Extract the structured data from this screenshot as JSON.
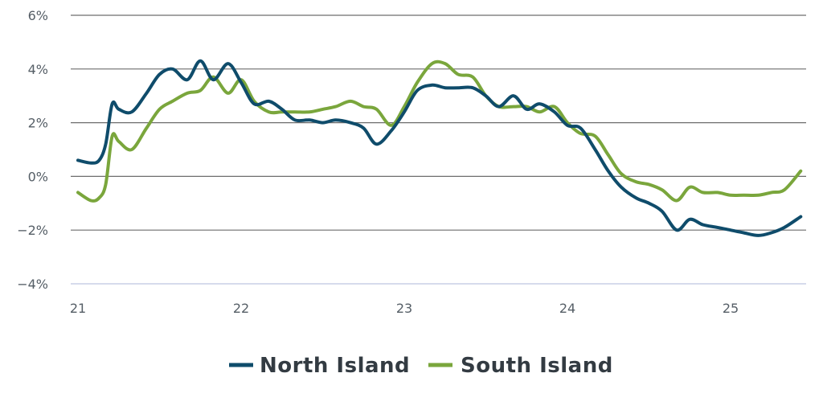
{
  "chart_data": {
    "type": "line",
    "title": "",
    "xlabel": "",
    "ylabel": "",
    "ylim": [
      -4,
      6
    ],
    "xlim": [
      21,
      25.45
    ],
    "grid": true,
    "legend_position": "bottom-center",
    "y_ticks": [
      {
        "value": 6,
        "label": "6%"
      },
      {
        "value": 4,
        "label": "4%"
      },
      {
        "value": 2,
        "label": "2%"
      },
      {
        "value": 0,
        "label": "0%"
      },
      {
        "value": -2,
        "label": "−2%"
      },
      {
        "value": -4,
        "label": "−4%"
      }
    ],
    "x_ticks": [
      {
        "value": 21,
        "label": "21"
      },
      {
        "value": 22,
        "label": "22"
      },
      {
        "value": 23,
        "label": "23"
      },
      {
        "value": 24,
        "label": "24"
      },
      {
        "value": 25,
        "label": "25"
      }
    ],
    "series": [
      {
        "name": "North Island",
        "color": "#0f4c6b",
        "x": [
          21.0,
          21.08,
          21.13,
          21.17,
          21.21,
          21.25,
          21.33,
          21.42,
          21.5,
          21.58,
          21.67,
          21.75,
          21.83,
          21.92,
          22.0,
          22.08,
          22.17,
          22.25,
          22.33,
          22.42,
          22.5,
          22.58,
          22.67,
          22.75,
          22.83,
          22.92,
          23.0,
          23.08,
          23.17,
          23.25,
          23.33,
          23.42,
          23.5,
          23.58,
          23.67,
          23.75,
          23.83,
          23.92,
          24.0,
          24.08,
          24.17,
          24.25,
          24.33,
          24.42,
          24.5,
          24.58,
          24.67,
          24.75,
          24.83,
          24.92,
          25.0,
          25.08,
          25.17,
          25.25,
          25.33,
          25.43
        ],
        "values": [
          0.6,
          0.5,
          0.6,
          1.2,
          2.7,
          2.5,
          2.4,
          3.1,
          3.8,
          4.0,
          3.6,
          4.3,
          3.6,
          4.2,
          3.5,
          2.7,
          2.8,
          2.5,
          2.1,
          2.1,
          2.0,
          2.1,
          2.0,
          1.8,
          1.2,
          1.7,
          2.4,
          3.2,
          3.4,
          3.3,
          3.3,
          3.3,
          3.0,
          2.6,
          3.0,
          2.5,
          2.7,
          2.4,
          1.9,
          1.8,
          1.0,
          0.2,
          -0.4,
          -0.8,
          -1.0,
          -1.3,
          -2.0,
          -1.6,
          -1.8,
          -1.9,
          -2.0,
          -2.1,
          -2.2,
          -2.1,
          -1.9,
          -1.5
        ]
      },
      {
        "name": "South Island",
        "color": "#7aa63c",
        "x": [
          21.0,
          21.08,
          21.13,
          21.17,
          21.21,
          21.25,
          21.33,
          21.42,
          21.5,
          21.58,
          21.67,
          21.75,
          21.83,
          21.92,
          22.0,
          22.08,
          22.17,
          22.25,
          22.33,
          22.42,
          22.5,
          22.58,
          22.67,
          22.75,
          22.83,
          22.92,
          23.0,
          23.08,
          23.17,
          23.25,
          23.33,
          23.42,
          23.5,
          23.58,
          23.67,
          23.75,
          23.83,
          23.92,
          24.0,
          24.08,
          24.17,
          24.25,
          24.33,
          24.42,
          24.5,
          24.58,
          24.67,
          24.75,
          24.83,
          24.92,
          25.0,
          25.08,
          25.17,
          25.25,
          25.33,
          25.43
        ],
        "values": [
          -0.6,
          -0.9,
          -0.8,
          -0.3,
          1.5,
          1.3,
          1.0,
          1.8,
          2.5,
          2.8,
          3.1,
          3.2,
          3.7,
          3.1,
          3.6,
          2.8,
          2.4,
          2.4,
          2.4,
          2.4,
          2.5,
          2.6,
          2.8,
          2.6,
          2.5,
          1.9,
          2.6,
          3.5,
          4.2,
          4.2,
          3.8,
          3.7,
          3.0,
          2.6,
          2.6,
          2.6,
          2.4,
          2.6,
          2.0,
          1.6,
          1.5,
          0.8,
          0.1,
          -0.2,
          -0.3,
          -0.5,
          -0.9,
          -0.4,
          -0.6,
          -0.6,
          -0.7,
          -0.7,
          -0.7,
          -0.6,
          -0.5,
          0.2
        ]
      }
    ]
  }
}
